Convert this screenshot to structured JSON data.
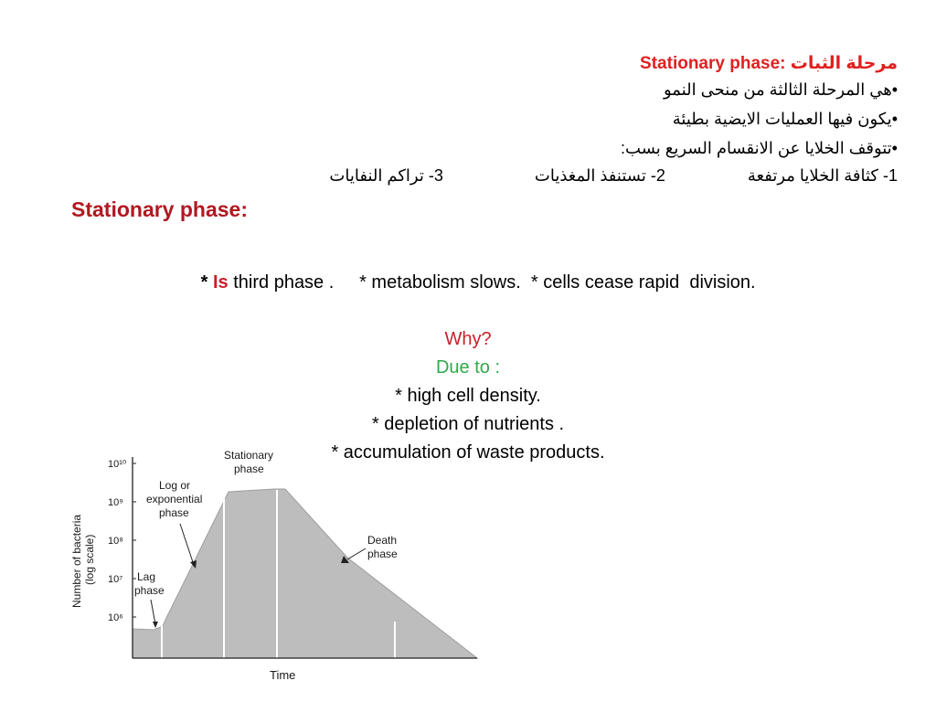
{
  "arabic": {
    "title_ar": "مرحلة الثبات",
    "title_en": "Stationary phase:",
    "bullet1": "•هي المرحلة الثالثة من منحى النمو",
    "bullet2": "•يكون فيها العمليات الايضية بطيئة",
    "bullet3": "•تتوقف الخلايا عن الانقسام السريع بسب:",
    "reasons": [
      "1- كثافة الخلايا مرتفعة",
      "2- تستنفذ المغذيات",
      "3- تراكم النفايات"
    ]
  },
  "english": {
    "heading": "Stationary phase:",
    "line1_star": "* ",
    "line1_is": "Is",
    "line1_rest": " third phase .     * metabolism slows.  * cells cease rapid  division.",
    "why": "Why?",
    "due_to": "Due to :",
    "reasons": [
      "* high cell density.",
      "* depletion of nutrients .",
      "* accumulation of waste products."
    ]
  },
  "chart_data": {
    "type": "area",
    "xlabel": "Time",
    "ylabel": "Number of bacteria (log scale)",
    "y_ticks": [
      "10¹⁰",
      "10⁹",
      "10⁸",
      "10⁷",
      "10⁶"
    ],
    "y_scale": "log",
    "phase_labels": [
      "Lag phase",
      "Log or exponential phase",
      "Stationary phase",
      "Death phase"
    ],
    "fill_color": "#bdbdbd"
  }
}
